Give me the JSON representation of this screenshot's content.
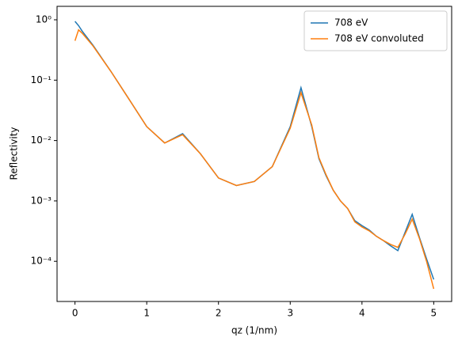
{
  "chart_data": {
    "type": "line",
    "xlabel": "qz (1/nm)",
    "ylabel": "Reflectivity",
    "yscale": "log",
    "xlim": [
      -0.25,
      5.25
    ],
    "xticks": [
      0,
      1,
      2,
      3,
      4,
      5
    ],
    "ylim": [
      2.16e-05,
      1.67
    ],
    "yticks": [
      {
        "value": 1,
        "label": "10⁰"
      },
      {
        "value": 0.1,
        "label": "10⁻¹"
      },
      {
        "value": 0.01,
        "label": "10⁻²"
      },
      {
        "value": 0.001,
        "label": "10⁻³"
      },
      {
        "value": 0.0001,
        "label": "10⁻⁴"
      }
    ],
    "legend": "upper right",
    "x": [
      0,
      0.05,
      0.1,
      0.25,
      0.5,
      0.75,
      1.0,
      1.25,
      1.5,
      1.75,
      2.0,
      2.25,
      2.5,
      2.75,
      3.0,
      3.15,
      3.3,
      3.4,
      3.5,
      3.6,
      3.7,
      3.8,
      3.9,
      4.0,
      4.1,
      4.2,
      4.3,
      4.4,
      4.5,
      4.6,
      4.7,
      4.8,
      4.9,
      5.0
    ],
    "series": [
      {
        "name": "708 eV",
        "color": "#1f77b4",
        "values": [
          0.94,
          0.8,
          0.65,
          0.38,
          0.14,
          0.049,
          0.017,
          0.0091,
          0.013,
          0.006,
          0.0024,
          0.0018,
          0.0021,
          0.0037,
          0.017,
          0.075,
          0.017,
          0.005,
          0.0026,
          0.0015,
          0.001,
          0.00075,
          0.00047,
          0.00039,
          0.00033,
          0.00026,
          0.00022,
          0.00018,
          0.00015,
          0.0003,
          0.0006,
          0.00025,
          0.00011,
          5e-05
        ]
      },
      {
        "name": "708 eV convoluted",
        "color": "#ff7f0e",
        "values": [
          0.45,
          0.68,
          0.6,
          0.37,
          0.14,
          0.049,
          0.017,
          0.0091,
          0.0125,
          0.006,
          0.0024,
          0.0018,
          0.0021,
          0.0037,
          0.016,
          0.062,
          0.018,
          0.0052,
          0.0027,
          0.0015,
          0.001,
          0.00075,
          0.00045,
          0.00037,
          0.00032,
          0.00026,
          0.00022,
          0.00019,
          0.00017,
          0.00028,
          0.0005,
          0.00024,
          0.0001,
          3.5e-05
        ]
      }
    ]
  }
}
